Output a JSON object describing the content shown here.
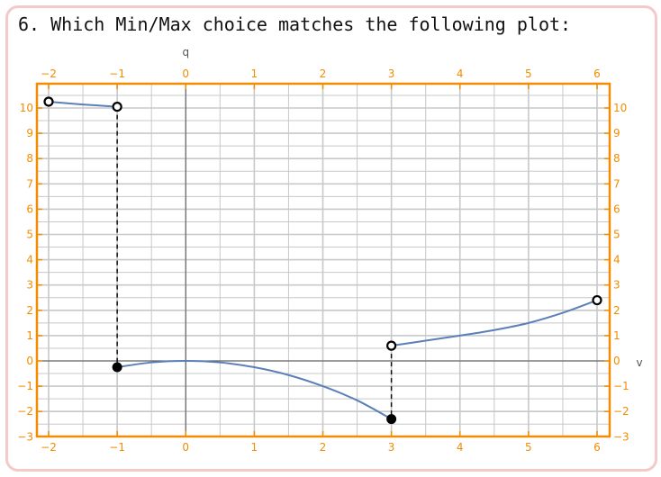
{
  "question": {
    "text": "6. Which Min/Max choice matches the following plot:"
  },
  "chart_data": {
    "type": "line",
    "xlabel": "v",
    "ylabel": "q",
    "xlim": [
      -2,
      6
    ],
    "ylim": [
      -3,
      11
    ],
    "x_ticks": [
      "-2",
      "-1",
      "0",
      "1",
      "2",
      "3",
      "4",
      "5",
      "6"
    ],
    "y_ticks": [
      "-3",
      "-2",
      "-1",
      "0",
      "1",
      "2",
      "3",
      "4",
      "5",
      "6",
      "7",
      "8",
      "9",
      "10"
    ],
    "grid": true,
    "frame_color": "#f28c00",
    "curve_color": "#5b7fb8",
    "series": [
      {
        "domain": [
          -2,
          -1
        ],
        "points": [
          [
            -2,
            10.25
          ],
          [
            -1.5,
            10.14
          ],
          [
            -1,
            10.05
          ]
        ]
      },
      {
        "domain": [
          -1,
          3
        ],
        "points": [
          [
            -1,
            -0.25
          ],
          [
            -0.5,
            -0.06
          ],
          [
            0,
            0
          ],
          [
            0.5,
            -0.06
          ],
          [
            1,
            -0.25
          ],
          [
            1.5,
            -0.56
          ],
          [
            2,
            -1.0
          ],
          [
            2.5,
            -1.56
          ],
          [
            3,
            -2.3
          ]
        ]
      },
      {
        "domain": [
          3,
          6
        ],
        "points": [
          [
            3,
            0.6
          ],
          [
            3.5,
            0.8
          ],
          [
            4,
            1.0
          ],
          [
            4.5,
            1.22
          ],
          [
            5,
            1.5
          ],
          [
            5.5,
            1.9
          ],
          [
            6,
            2.4
          ]
        ]
      }
    ],
    "open_points": [
      [
        -2,
        10.25
      ],
      [
        -1,
        10.05
      ],
      [
        3,
        0.6
      ],
      [
        6,
        2.4
      ]
    ],
    "closed_points": [
      [
        -1,
        -0.25
      ],
      [
        3,
        -2.3
      ]
    ],
    "dashed_verticals": [
      [
        -1,
        10.05,
        -0.25
      ],
      [
        3,
        0.6,
        -2.3
      ]
    ]
  }
}
